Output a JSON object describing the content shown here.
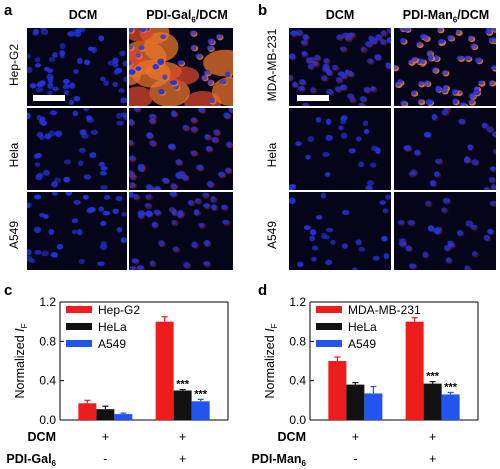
{
  "figure": {
    "panels": {
      "a": {
        "letter": "a",
        "columns": [
          "DCM",
          "PDI-Gal",
          "6",
          "/DCM"
        ],
        "rows": [
          "Hep-G2",
          "Hela",
          "A549"
        ]
      },
      "b": {
        "letter": "b",
        "columns": [
          "DCM",
          "PDI-Man",
          "6",
          "/DCM"
        ],
        "rows": [
          "MDA-MB-231",
          "Hela",
          "A549"
        ]
      },
      "c": {
        "letter": "c"
      },
      "d": {
        "letter": "d"
      }
    },
    "colors": {
      "nucleus": "#2233dd",
      "background": "#05051a",
      "probe_strong": "#e8742a",
      "probe_medium": "#d8452a",
      "probe_weak": "#a8282e",
      "red": "#ee1c1c",
      "black": "#111111",
      "blue": "#2255ee"
    }
  },
  "chart_data": [
    {
      "type": "bar",
      "panel": "c",
      "ylabel": "Normalized I",
      "ylabel_sub": "F",
      "ylim": [
        0,
        1.2
      ],
      "yticks": [
        "0.0",
        "0.4",
        "0.8",
        "1.2"
      ],
      "yticks_values": [
        0.0,
        0.4,
        0.8,
        1.2
      ],
      "legend": [
        "Hep-G2",
        "HeLa",
        "A549"
      ],
      "legend_position": "top-left",
      "series": [
        {
          "name": "Hep-G2",
          "color": "#ee1c1c",
          "values": [
            0.17,
            1.0
          ],
          "errors": [
            0.03,
            0.05
          ]
        },
        {
          "name": "HeLa",
          "color": "#111111",
          "values": [
            0.11,
            0.3
          ],
          "errors": [
            0.03,
            0.01
          ]
        },
        {
          "name": "A549",
          "color": "#2255ee",
          "values": [
            0.06,
            0.19
          ],
          "errors": [
            0.01,
            0.02
          ]
        }
      ],
      "significance": [
        "***",
        "***"
      ],
      "condition_rows": [
        {
          "label": "DCM",
          "sub": "",
          "values": [
            "+",
            "+"
          ]
        },
        {
          "label": "PDI-Gal",
          "sub": "6",
          "values": [
            "-",
            "+"
          ]
        }
      ]
    },
    {
      "type": "bar",
      "panel": "d",
      "ylabel": "Normalized I",
      "ylabel_sub": "F",
      "ylim": [
        0,
        1.2
      ],
      "yticks": [
        "0.0",
        "0.4",
        "0.8",
        "1.2"
      ],
      "yticks_values": [
        0.0,
        0.4,
        0.8,
        1.2
      ],
      "legend": [
        "MDA-MB-231",
        "HeLa",
        "A549"
      ],
      "legend_position": "top-left",
      "series": [
        {
          "name": "MDA-MB-231",
          "color": "#ee1c1c",
          "values": [
            0.6,
            1.0
          ],
          "errors": [
            0.04,
            0.04
          ]
        },
        {
          "name": "HeLa",
          "color": "#111111",
          "values": [
            0.36,
            0.37
          ],
          "errors": [
            0.02,
            0.02
          ]
        },
        {
          "name": "A549",
          "color": "#2255ee",
          "values": [
            0.27,
            0.26
          ],
          "errors": [
            0.07,
            0.02
          ]
        }
      ],
      "significance": [
        "***",
        "***"
      ],
      "condition_rows": [
        {
          "label": "DCM",
          "sub": "",
          "values": [
            "+",
            "+"
          ]
        },
        {
          "label": "PDI-Man",
          "sub": "6",
          "values": [
            "-",
            "+"
          ]
        }
      ]
    }
  ]
}
